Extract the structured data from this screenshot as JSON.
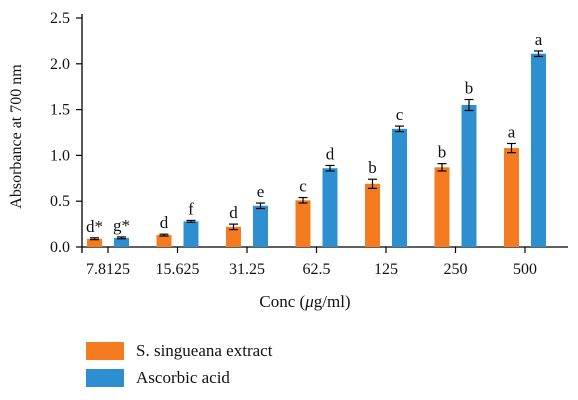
{
  "chart_data": {
    "type": "bar",
    "xlabel_prefix": "Conc (",
    "xlabel_unit": "μ",
    "xlabel_suffix": "g/ml)",
    "ylabel": "Absorbance at 700 nm",
    "categories": [
      "7.8125",
      "15.625",
      "31.25",
      "62.5",
      "125",
      "250",
      "500"
    ],
    "ylim": [
      0,
      2.5
    ],
    "yticks": [
      "0.0",
      "0.5",
      "1.0",
      "1.5",
      "2.0",
      "2.5"
    ],
    "series": [
      {
        "name": "S. singueana extract",
        "color": "#F47B20",
        "values": [
          0.09,
          0.13,
          0.22,
          0.51,
          0.69,
          0.87,
          1.08
        ],
        "errors": [
          0.01,
          0.01,
          0.03,
          0.03,
          0.05,
          0.04,
          0.05
        ],
        "labels": [
          "d*",
          "d",
          "d",
          "c",
          "b",
          "b",
          "a"
        ]
      },
      {
        "name": "Ascorbic acid",
        "color": "#2E8FD0",
        "values": [
          0.1,
          0.28,
          0.45,
          0.86,
          1.29,
          1.55,
          2.11
        ],
        "errors": [
          0.01,
          0.01,
          0.03,
          0.03,
          0.03,
          0.06,
          0.03
        ],
        "labels": [
          "g*",
          "f",
          "e",
          "d",
          "c",
          "b",
          "a"
        ]
      }
    ],
    "grid": false,
    "legend_position": "bottom-left"
  }
}
